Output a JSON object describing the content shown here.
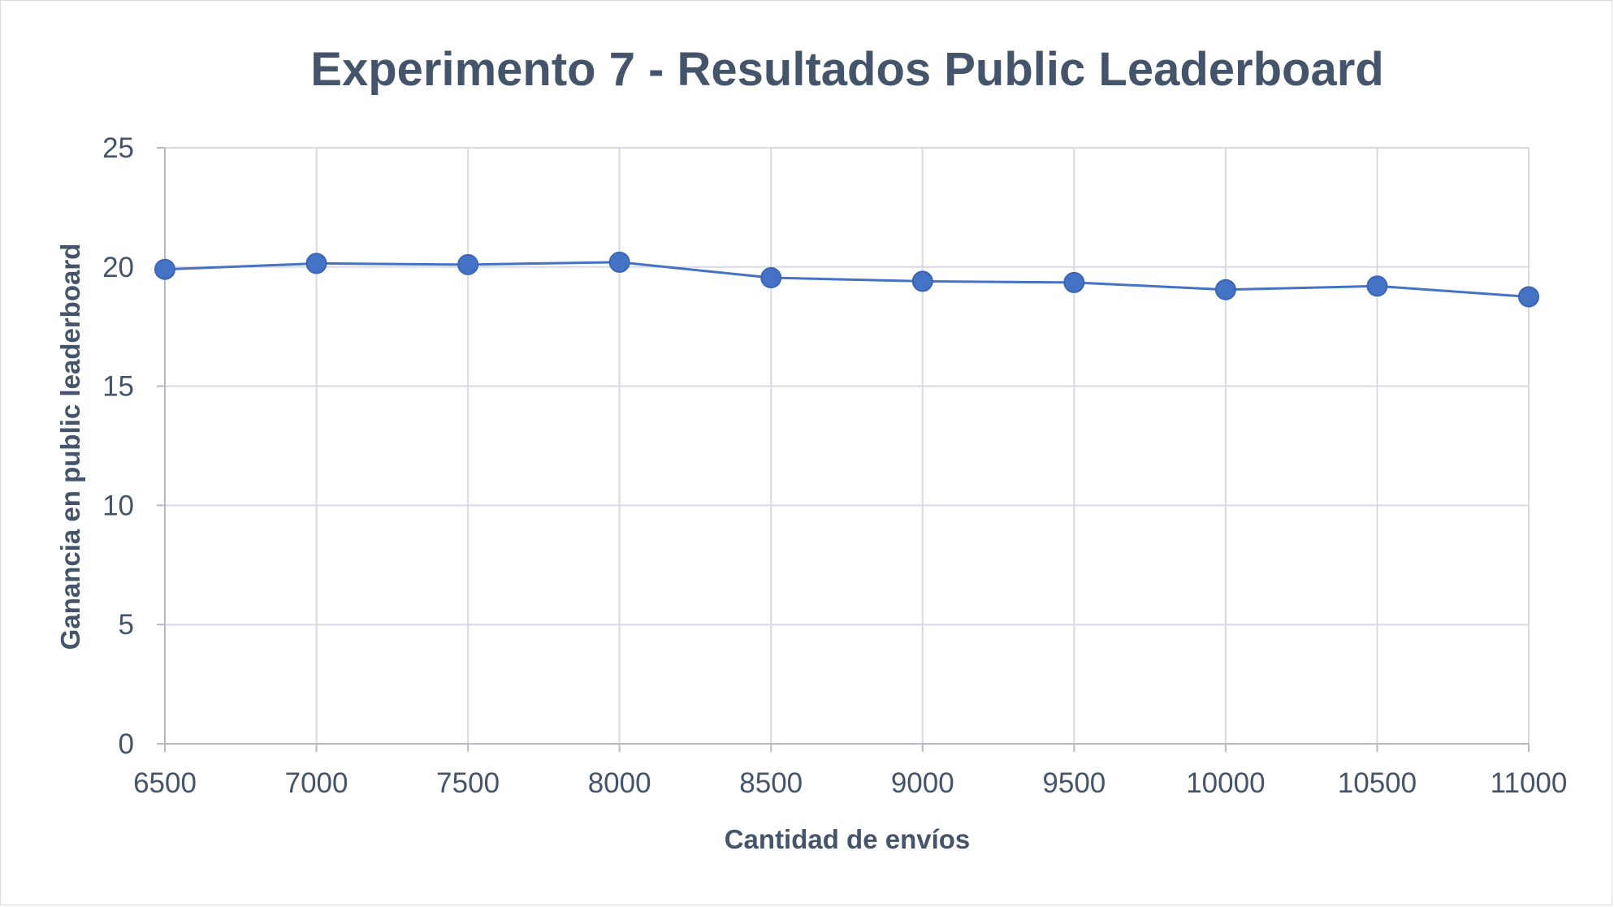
{
  "chart_data": {
    "type": "line",
    "title": "Experimento 7 - Resultados Public Leaderboard",
    "xlabel": "Cantidad de envíos",
    "ylabel": "Ganancia en public leaderboard",
    "x": [
      6500,
      7000,
      7500,
      8000,
      8500,
      9000,
      9500,
      10000,
      10500,
      11000
    ],
    "series": [
      {
        "values": [
          19.9,
          20.15,
          20.1,
          20.2,
          19.55,
          19.4,
          19.35,
          19.05,
          19.2,
          18.75
        ],
        "color": "#4472c4"
      }
    ],
    "xlim": [
      6500,
      11000
    ],
    "ylim": [
      0,
      25
    ],
    "xticks": [
      6500,
      7000,
      7500,
      8000,
      8500,
      9000,
      9500,
      10000,
      10500,
      11000
    ],
    "yticks": [
      0,
      5,
      10,
      15,
      20,
      25
    ],
    "grid": true,
    "legend": "none"
  }
}
